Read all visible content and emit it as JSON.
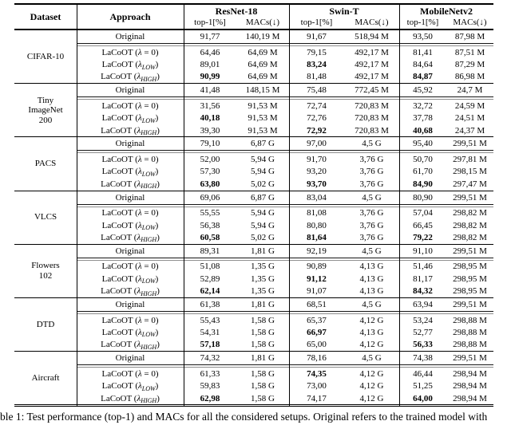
{
  "table": {
    "header": {
      "dataset": "Dataset",
      "approach": "Approach",
      "models": [
        "ResNet-18",
        "Swin-T",
        "MobileNetv2"
      ],
      "sub_top1": "top-1[%]",
      "sub_macs": "MACs(↓)"
    },
    "approaches": [
      {
        "parts": [
          {
            "t": "Original"
          }
        ]
      },
      {
        "parts": [
          {
            "t": "LaCoOT ("
          },
          {
            "t": "λ",
            "i": 1
          },
          {
            "t": " = 0)"
          }
        ]
      },
      {
        "parts": [
          {
            "t": "LaCoOT ("
          },
          {
            "t": "λ",
            "i": 1
          },
          {
            "t": "LOW",
            "s": 1
          },
          {
            "t": ")"
          }
        ]
      },
      {
        "parts": [
          {
            "t": "LaCoOT ("
          },
          {
            "t": "λ",
            "i": 1
          },
          {
            "t": "HIGH",
            "s": 1
          },
          {
            "t": ")"
          }
        ]
      }
    ],
    "groups": [
      {
        "dataset_lines": [
          "CIFAR-10"
        ],
        "rows": [
          {
            "a": 0,
            "v": [
              "91,77",
              "140,19 M",
              "91,67",
              "518,94 M",
              "93,50",
              "87,98 M"
            ],
            "b": []
          },
          {
            "a": 1,
            "v": [
              "64,46",
              "64,69 M",
              "79,15",
              "492,17 M",
              "81,41",
              "87,51 M"
            ],
            "b": []
          },
          {
            "a": 2,
            "v": [
              "89,01",
              "64,69 M",
              "83,24",
              "492,17 M",
              "84,64",
              "87,29 M"
            ],
            "b": [
              2
            ]
          },
          {
            "a": 3,
            "v": [
              "90,99",
              "64,69 M",
              "81,48",
              "492,17 M",
              "84,87",
              "86,98 M"
            ],
            "b": [
              0,
              4
            ]
          }
        ]
      },
      {
        "dataset_lines": [
          "Tiny",
          "ImageNet",
          "200"
        ],
        "rows": [
          {
            "a": 0,
            "v": [
              "41,48",
              "148,15 M",
              "75,48",
              "772,45 M",
              "45,92",
              "24,7 M"
            ],
            "b": []
          },
          {
            "a": 1,
            "v": [
              "31,56",
              "91,53 M",
              "72,74",
              "720,83 M",
              "32,72",
              "24,59 M"
            ],
            "b": []
          },
          {
            "a": 2,
            "v": [
              "40,18",
              "91,53 M",
              "72,76",
              "720,83 M",
              "37,78",
              "24,51 M"
            ],
            "b": [
              0
            ]
          },
          {
            "a": 3,
            "v": [
              "39,30",
              "91,53 M",
              "72,92",
              "720,83 M",
              "40,68",
              "24,37 M"
            ],
            "b": [
              2,
              4
            ]
          }
        ]
      },
      {
        "dataset_lines": [
          "PACS"
        ],
        "rows": [
          {
            "a": 0,
            "v": [
              "79,10",
              "6,87 G",
              "97,00",
              "4,5 G",
              "95,40",
              "299,51 M"
            ],
            "b": []
          },
          {
            "a": 1,
            "v": [
              "52,00",
              "5,94 G",
              "91,70",
              "3,76 G",
              "50,70",
              "297,81 M"
            ],
            "b": []
          },
          {
            "a": 2,
            "v": [
              "57,30",
              "5,94 G",
              "93,20",
              "3,76 G",
              "61,70",
              "298,15 M"
            ],
            "b": []
          },
          {
            "a": 3,
            "v": [
              "63,80",
              "5,02 G",
              "93,70",
              "3,76 G",
              "84,90",
              "297,47 M"
            ],
            "b": [
              0,
              2,
              4
            ]
          }
        ]
      },
      {
        "dataset_lines": [
          "VLCS"
        ],
        "rows": [
          {
            "a": 0,
            "v": [
              "69,06",
              "6,87 G",
              "83,04",
              "4,5 G",
              "80,90",
              "299,51 M"
            ],
            "b": []
          },
          {
            "a": 1,
            "v": [
              "55,55",
              "5,94 G",
              "81,08",
              "3,76 G",
              "57,04",
              "298,82 M"
            ],
            "b": []
          },
          {
            "a": 2,
            "v": [
              "56,38",
              "5,94 G",
              "80,80",
              "3,76 G",
              "66,45",
              "298,82 M"
            ],
            "b": []
          },
          {
            "a": 3,
            "v": [
              "60,58",
              "5,02 G",
              "81,64",
              "3,76 G",
              "79,22",
              "298,82 M"
            ],
            "b": [
              0,
              2,
              4
            ]
          }
        ]
      },
      {
        "dataset_lines": [
          "Flowers",
          "102"
        ],
        "rows": [
          {
            "a": 0,
            "v": [
              "89,31",
              "1,81 G",
              "92,19",
              "4,5 G",
              "91,10",
              "299,51 M"
            ],
            "b": []
          },
          {
            "a": 1,
            "v": [
              "51,08",
              "1,35 G",
              "90,89",
              "4,13 G",
              "51,46",
              "298,95 M"
            ],
            "b": []
          },
          {
            "a": 2,
            "v": [
              "52,89",
              "1,35 G",
              "91,12",
              "4,13 G",
              "81,17",
              "298,95 M"
            ],
            "b": [
              2
            ]
          },
          {
            "a": 3,
            "v": [
              "62,14",
              "1,35 G",
              "91,07",
              "4,13 G",
              "84,32",
              "298,95 M"
            ],
            "b": [
              0,
              4
            ]
          }
        ]
      },
      {
        "dataset_lines": [
          "DTD"
        ],
        "rows": [
          {
            "a": 0,
            "v": [
              "61,38",
              "1,81 G",
              "68,51",
              "4,5 G",
              "63,94",
              "299,51 M"
            ],
            "b": []
          },
          {
            "a": 1,
            "v": [
              "55,43",
              "1,58 G",
              "65,37",
              "4,12 G",
              "53,24",
              "298,88 M"
            ],
            "b": []
          },
          {
            "a": 2,
            "v": [
              "54,31",
              "1,58 G",
              "66,97",
              "4,13 G",
              "52,77",
              "298,88 M"
            ],
            "b": [
              2
            ]
          },
          {
            "a": 3,
            "v": [
              "57,18",
              "1,58 G",
              "65,00",
              "4,12 G",
              "56,33",
              "298,88 M"
            ],
            "b": [
              0,
              4
            ]
          }
        ]
      },
      {
        "dataset_lines": [
          "Aircraft"
        ],
        "rows": [
          {
            "a": 0,
            "v": [
              "74,32",
              "1,81 G",
              "78,16",
              "4,5 G",
              "74,38",
              "299,51 M"
            ],
            "b": []
          },
          {
            "a": 1,
            "v": [
              "61,33",
              "1,58 G",
              "74,35",
              "4,12 G",
              "46,44",
              "298,94 M"
            ],
            "b": [
              2
            ]
          },
          {
            "a": 2,
            "v": [
              "59,83",
              "1,58 G",
              "73,00",
              "4,12 G",
              "51,25",
              "298,94 M"
            ],
            "b": []
          },
          {
            "a": 3,
            "v": [
              "62,98",
              "1,58 G",
              "74,17",
              "4,12 G",
              "64,00",
              "298,94 M"
            ],
            "b": [
              0,
              4
            ]
          }
        ]
      }
    ]
  },
  "caption": "ble 1: Test performance (top-1) and MACs for all the considered setups. Original refers to the trained model with"
}
